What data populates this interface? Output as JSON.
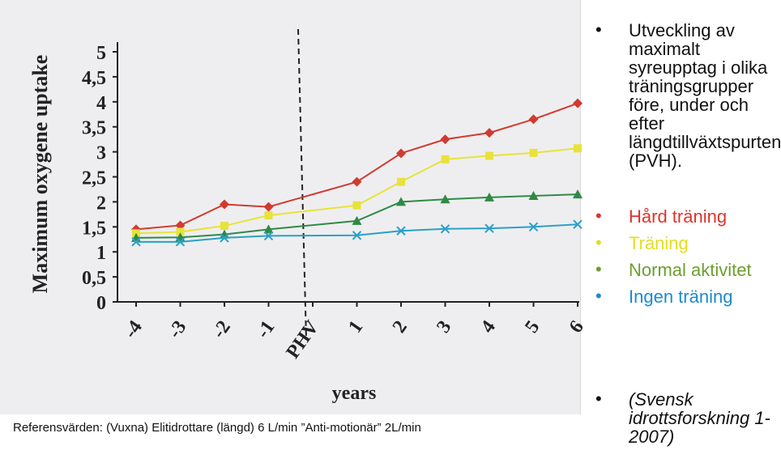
{
  "chart_data": {
    "type": "line",
    "ylabel": "Maximum oxygene uptake",
    "xlabel": "years",
    "ylim": [
      0,
      5
    ],
    "yticks": [
      "0",
      "0,5",
      "1",
      "1,5",
      "2",
      "2,5",
      "3",
      "3,5",
      "4",
      "4,5",
      "5"
    ],
    "x_ticks": [
      "-4",
      "-3",
      "-2",
      "-1",
      "PHV",
      "1",
      "2",
      "3",
      "4",
      "5",
      "6"
    ],
    "phv_index": 4,
    "series": [
      {
        "name": "Hård träning",
        "color": "#d23a2e",
        "marker": "diamond",
        "x": [
          -4,
          -3,
          -2,
          -1,
          1,
          2,
          3,
          4,
          5,
          6
        ],
        "values": [
          1.45,
          1.53,
          1.95,
          1.9,
          2.4,
          2.97,
          3.25,
          3.38,
          3.65,
          3.97
        ]
      },
      {
        "name": "Träning",
        "color": "#e8e23a",
        "marker": "square",
        "x": [
          -4,
          -3,
          -2,
          -1,
          1,
          2,
          3,
          4,
          5,
          6
        ],
        "values": [
          1.37,
          1.4,
          1.52,
          1.73,
          1.93,
          2.4,
          2.85,
          2.92,
          2.98,
          3.07
        ]
      },
      {
        "name": "Normal aktivitet",
        "color": "#2f8a46",
        "marker": "triangle",
        "x": [
          -4,
          -3,
          -2,
          -1,
          1,
          2,
          3,
          4,
          5,
          6
        ],
        "values": [
          1.28,
          1.29,
          1.35,
          1.45,
          1.62,
          2.0,
          2.05,
          2.09,
          2.12,
          2.15
        ]
      },
      {
        "name": "Ingen träning",
        "color": "#2aa0c8",
        "marker": "x",
        "x": [
          -4,
          -3,
          -2,
          -1,
          1,
          2,
          3,
          4,
          5,
          6
        ],
        "values": [
          1.2,
          1.2,
          1.28,
          1.32,
          1.33,
          1.42,
          1.46,
          1.47,
          1.5,
          1.55
        ]
      }
    ]
  },
  "caption": "Referensvärden: (Vuxna) Elitidrottare (längd) 6 L/min  ”Anti-motionär” 2L/min",
  "bullets": {
    "intro": "Utveckling av maximalt syreupptag i olika träningsgrupper före, under och efter längdtillväxtspurten (PVH).",
    "legend": [
      {
        "label": "Hård träning",
        "color": "#e0342a"
      },
      {
        "label": "Träning",
        "color": "#e3dd1f"
      },
      {
        "label": "Normal aktivitet",
        "color": "#6a9f2e"
      },
      {
        "label": "Ingen träning",
        "color": "#1b8ad0"
      }
    ],
    "reference": "(Svensk idrottsforskning 1-2007)"
  },
  "colors": {
    "photo_bg": "#eeeef0",
    "axis": "#222222",
    "phv_line": "#222222"
  }
}
